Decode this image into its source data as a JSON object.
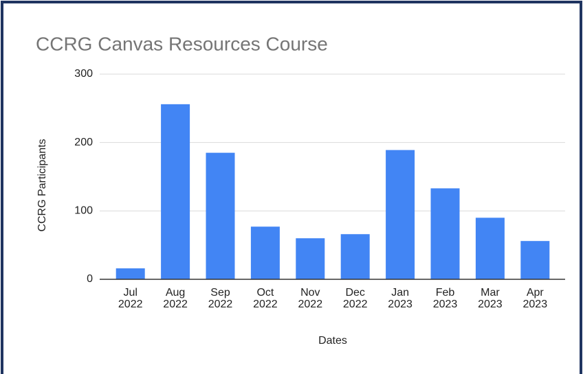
{
  "chart_data": {
    "type": "bar",
    "title": "CCRG Canvas Resources Course",
    "categories": [
      "Jul 2022",
      "Aug 2022",
      "Sep 2022",
      "Oct 2022",
      "Nov 2022",
      "Dec 2022",
      "Jan 2023",
      "Feb 2023",
      "Mar 2023",
      "Apr 2023"
    ],
    "values": [
      16,
      256,
      185,
      77,
      60,
      66,
      189,
      133,
      90,
      56
    ],
    "color": "#4285f4",
    "xlabel": "Dates",
    "ylabel": "CCRG Participants",
    "ylim": [
      0,
      300
    ],
    "yticks": [
      0,
      100,
      200,
      300
    ],
    "grid": true
  }
}
